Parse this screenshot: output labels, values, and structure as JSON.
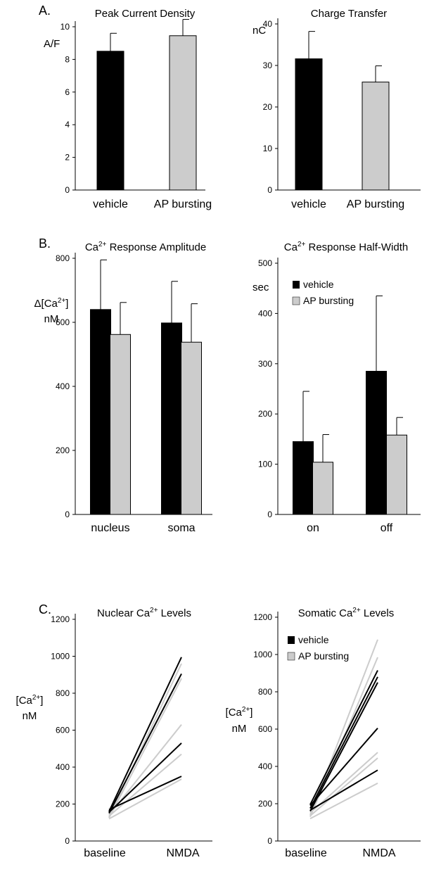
{
  "colors": {
    "vehicle": "#000000",
    "ap_bursting": "#cccccc",
    "axis": "#000000"
  },
  "chart_data": [
    {
      "id": "a1",
      "panel_label": "A.",
      "type": "bar",
      "title": "Peak Current Density",
      "ylabel": "A/F",
      "ylim": [
        0,
        10
      ],
      "yticks": [
        0,
        2,
        4,
        6,
        8,
        10
      ],
      "categories": [
        "vehicle",
        "AP bursting"
      ],
      "values": [
        8.5,
        9.45
      ],
      "errors": [
        1.1,
        1.0
      ],
      "colors": [
        "#000000",
        "#cccccc"
      ]
    },
    {
      "id": "a2",
      "type": "bar",
      "title": "Charge Transfer",
      "ylabel": "nC",
      "ylim": [
        0,
        40
      ],
      "yticks": [
        0,
        10,
        20,
        30,
        40
      ],
      "categories": [
        "vehicle",
        "AP bursting"
      ],
      "values": [
        31.6,
        26.0
      ],
      "errors": [
        6.6,
        3.9
      ],
      "colors": [
        "#000000",
        "#cccccc"
      ]
    },
    {
      "id": "b1",
      "panel_label": "B.",
      "type": "bar",
      "title_parts": [
        "Ca",
        "2+",
        " Response Amplitude"
      ],
      "ylabel_parts": [
        "Δ[Ca",
        "2+",
        "]"
      ],
      "ylabel2": "nM",
      "ylim": [
        0,
        800
      ],
      "yticks": [
        0,
        200,
        400,
        600,
        800
      ],
      "categories": [
        "nucleus",
        "soma"
      ],
      "series": [
        {
          "name": "vehicle",
          "values": [
            640,
            598
          ],
          "errors": [
            155,
            130
          ],
          "color": "#000000"
        },
        {
          "name": "AP bursting",
          "values": [
            562,
            538
          ],
          "errors": [
            100,
            120
          ],
          "color": "#cccccc"
        }
      ]
    },
    {
      "id": "b2",
      "type": "bar",
      "title_parts": [
        "Ca",
        "2+",
        " Response Half-Width"
      ],
      "ylabel": "sec",
      "ylim": [
        0,
        500
      ],
      "yticks": [
        0,
        100,
        200,
        300,
        400,
        500
      ],
      "categories": [
        "on",
        "off"
      ],
      "legend": [
        "vehicle",
        "AP bursting"
      ],
      "series": [
        {
          "name": "vehicle",
          "values": [
            145,
            285
          ],
          "errors": [
            100,
            150
          ],
          "color": "#000000"
        },
        {
          "name": "AP bursting",
          "values": [
            104,
            158
          ],
          "errors": [
            55,
            35
          ],
          "color": "#cccccc"
        }
      ]
    },
    {
      "id": "c1",
      "panel_label": "C.",
      "type": "line",
      "title_parts": [
        "Nuclear Ca",
        "2+",
        " Levels"
      ],
      "ylabel_parts": [
        "[Ca",
        "2+",
        "]"
      ],
      "ylabel2": "nM",
      "ylim": [
        0,
        1200
      ],
      "yticks": [
        0,
        200,
        400,
        600,
        800,
        1000,
        1200
      ],
      "categories": [
        "baseline",
        "NMDA"
      ],
      "series": [
        {
          "name": "vehicle",
          "color": "#000000",
          "lines": [
            [
              160,
              995
            ],
            [
              150,
              905
            ],
            [
              155,
              530
            ],
            [
              170,
              350
            ]
          ]
        },
        {
          "name": "AP bursting",
          "color": "#cccccc",
          "lines": [
            [
              130,
              960
            ],
            [
              125,
              880
            ],
            [
              140,
              630
            ],
            [
              135,
              470
            ],
            [
              120,
              335
            ]
          ]
        }
      ]
    },
    {
      "id": "c2",
      "type": "line",
      "title_parts": [
        "Somatic Ca",
        "2+",
        " Levels"
      ],
      "ylabel_parts": [
        "[Ca",
        "2+",
        "]"
      ],
      "ylabel2": "nM",
      "ylim": [
        0,
        1200
      ],
      "yticks": [
        0,
        200,
        400,
        600,
        800,
        1000,
        1200
      ],
      "categories": [
        "baseline",
        "NMDA"
      ],
      "legend": [
        "vehicle",
        "AP bursting"
      ],
      "series": [
        {
          "name": "vehicle",
          "color": "#000000",
          "lines": [
            [
              195,
              915
            ],
            [
              175,
              880
            ],
            [
              160,
              850
            ],
            [
              190,
              605
            ],
            [
              165,
              380
            ]
          ]
        },
        {
          "name": "AP bursting",
          "color": "#cccccc",
          "lines": [
            [
              140,
              1080
            ],
            [
              130,
              985
            ],
            [
              150,
              475
            ],
            [
              135,
              445
            ],
            [
              120,
              310
            ]
          ]
        }
      ]
    }
  ]
}
